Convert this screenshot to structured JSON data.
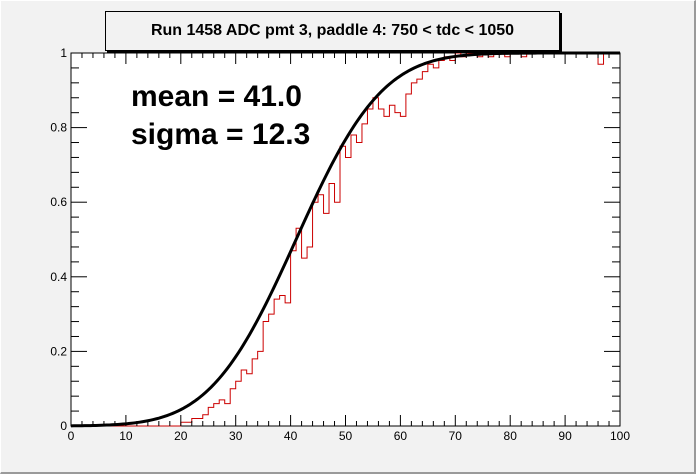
{
  "chart_data": {
    "type": "line",
    "title": "Run 1458 ADC pmt 3, paddle 4: 750 < tdc < 1050",
    "annotations": [
      "mean = 41.0",
      "sigma = 12.3"
    ],
    "xlabel": "",
    "ylabel": "",
    "xlim": [
      0,
      100
    ],
    "ylim": [
      0,
      1
    ],
    "x_ticks": [
      "0",
      "10",
      "20",
      "30",
      "40",
      "50",
      "60",
      "70",
      "80",
      "90",
      "100"
    ],
    "y_ticks": [
      "0",
      "0.2",
      "0.4",
      "0.6",
      "0.8",
      "1"
    ],
    "grid": false,
    "legend": "none",
    "series": [
      {
        "kind": "histogram-step",
        "color": "#cc0000",
        "bin_width": 1,
        "bins_start": 20,
        "values": [
          0.01,
          0.01,
          0.02,
          0.02,
          0.03,
          0.05,
          0.06,
          0.07,
          0.06,
          0.1,
          0.12,
          0.15,
          0.14,
          0.18,
          0.2,
          0.28,
          0.3,
          0.34,
          0.35,
          0.33,
          0.47,
          0.53,
          0.45,
          0.48,
          0.6,
          0.62,
          0.57,
          0.65,
          0.6,
          0.75,
          0.72,
          0.78,
          0.76,
          0.81,
          0.85,
          0.88,
          0.85,
          0.83,
          0.86,
          0.84,
          0.83,
          0.89,
          0.92,
          0.93,
          0.95,
          0.97,
          0.96,
          0.98,
          0.99,
          0.98,
          1.0,
          0.99,
          1.0,
          1.0,
          0.99,
          1.0,
          0.99,
          1.0,
          1.0,
          0.99,
          1.0,
          1.0,
          0.99,
          1.0,
          1.0,
          1.0,
          1.0,
          1.0,
          1.0,
          1.0,
          1.0,
          1.0,
          1.0,
          1.0,
          1.0,
          1.0,
          0.97,
          1.0,
          1.0,
          1.0
        ]
      },
      {
        "kind": "fit-curve",
        "color": "#000000",
        "function": "normal-cdf",
        "mean": 41.0,
        "sigma": 12.3
      }
    ]
  }
}
